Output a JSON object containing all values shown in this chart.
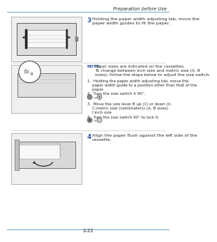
{
  "page_title": "Preparation before Use",
  "page_number": "2-22",
  "header_line_color": "#7bafd4",
  "footer_line_color": "#7bafd4",
  "background_color": "#ffffff",
  "text_color": "#2a2a2a",
  "note_color": "#3355aa",
  "step3_number": "3",
  "step3_text": "Holding the paper width adjusting tab, move the\npaper width guides to fit the paper.",
  "note_bold": "NOTE:",
  "note_rest": " Paper sizes are indicated on the cassettes.\nTo change between inch size and metric size (A, B\nsizes), follow the steps below to adjust the size switch.",
  "sub1": "1.  Holding the paper width adjusting tab, move the\n    paper width guide to a position other than that of the\n    paper.",
  "sub2": "2.  Turn the size switch A 90°.",
  "sub3": "3.  Move the size lever B up (C) or down (I).\n    C:metric size (centimeters) (A, B sizes)\n    I:inch size",
  "sub4": "4.  Turn the size switch 90° to lock it.",
  "step4_number": "4",
  "step4_text": "Align the paper flush against the left side of the\ncassette.",
  "divider_color": "#bbbbbb",
  "img_border_color": "#999999",
  "img_bg": "#f0f0f0",
  "fs_header": 4.8,
  "fs_step_num": 6.5,
  "fs_body": 4.5,
  "fs_note": 4.3,
  "fs_page": 5.0
}
